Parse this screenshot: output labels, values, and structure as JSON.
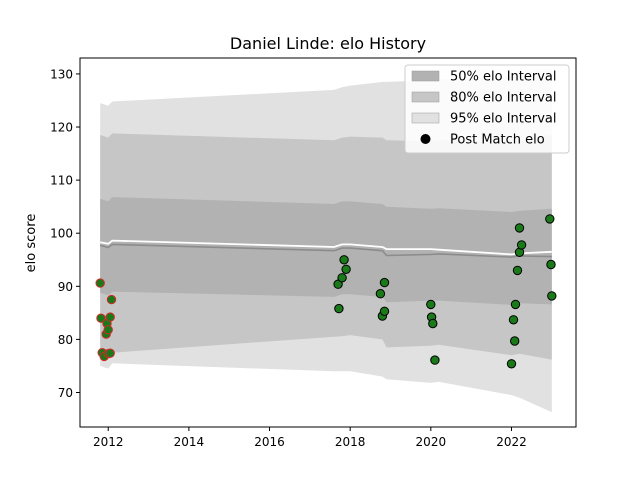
{
  "chart_data": {
    "type": "scatter",
    "title": "Daniel Linde: elo History",
    "xlabel": "",
    "ylabel": "elo score",
    "xlim": [
      2011.3,
      2023.6
    ],
    "ylim": [
      63.5,
      133
    ],
    "x_ticks": [
      2012,
      2014,
      2016,
      2018,
      2020,
      2022
    ],
    "y_ticks": [
      70,
      80,
      90,
      100,
      110,
      120,
      130
    ],
    "legend": {
      "placement": "top-right",
      "entries": [
        "50% elo Interval",
        "80% elo Interval",
        "95% elo Interval",
        "Post Match elo"
      ]
    },
    "colors": {
      "band_50": "#b2b2b2",
      "band_80": "#c6c6c6",
      "band_95": "#e1e1e1",
      "mean_line": "#ffffff",
      "median_line": "#8c8c8c",
      "early_points_edge": "#d62728",
      "recent_points_fill": "#1a7a1a",
      "points_edge": "#000000"
    },
    "mean_line": {
      "x": [
        2011.8,
        2012.0,
        2012.1,
        2017.6,
        2017.8,
        2018.0,
        2018.8,
        2018.9,
        2020.0,
        2020.2,
        2022.0,
        2022.2,
        2023.0
      ],
      "y": [
        98.3,
        98.0,
        98.6,
        97.4,
        97.9,
        97.9,
        97.4,
        97.0,
        97.0,
        96.9,
        96.0,
        96.2,
        96.5
      ]
    },
    "median_line": {
      "x": [
        2011.8,
        2012.0,
        2012.1,
        2017.6,
        2017.8,
        2018.0,
        2018.8,
        2018.9,
        2020.0,
        2020.2,
        2022.0,
        2022.2,
        2023.0
      ],
      "y": [
        97.7,
        97.3,
        97.9,
        96.7,
        97.2,
        97.2,
        96.7,
        95.8,
        96.0,
        96.1,
        95.5,
        95.7,
        95.6
      ]
    },
    "band_50": {
      "x": [
        2011.8,
        2012.0,
        2012.1,
        2017.6,
        2017.8,
        2018.0,
        2018.8,
        2018.9,
        2020.0,
        2020.2,
        2022.0,
        2022.2,
        2023.0
      ],
      "upper": [
        106.5,
        106.0,
        106.8,
        105.5,
        106.0,
        106.0,
        105.5,
        105.0,
        104.6,
        104.7,
        104.0,
        104.2,
        104.6
      ],
      "lower": [
        88.8,
        88.3,
        89.0,
        88.0,
        88.5,
        88.5,
        88.0,
        87.0,
        87.3,
        87.3,
        86.5,
        86.8,
        86.6
      ]
    },
    "band_80": {
      "x": [
        2011.8,
        2012.0,
        2012.1,
        2017.6,
        2017.8,
        2018.0,
        2018.8,
        2018.9,
        2020.0,
        2020.2,
        2022.0,
        2022.2,
        2023.0
      ],
      "upper": [
        118.5,
        118.0,
        118.8,
        117.5,
        118.0,
        118.2,
        118.0,
        117.5,
        117.3,
        117.5,
        117.2,
        117.6,
        118.5
      ],
      "lower": [
        77.0,
        76.5,
        77.5,
        80.5,
        80.6,
        80.8,
        80.0,
        78.5,
        78.8,
        79.0,
        77.0,
        77.3,
        76.2
      ]
    },
    "band_95": {
      "x": [
        2011.8,
        2012.0,
        2012.1,
        2017.6,
        2017.8,
        2018.0,
        2018.8,
        2018.9,
        2020.0,
        2020.2,
        2022.0,
        2022.2,
        2023.0
      ],
      "upper": [
        124.5,
        124.0,
        124.8,
        127.0,
        127.5,
        127.8,
        128.5,
        128.5,
        128.8,
        129.0,
        129.5,
        130.0,
        131.0
      ],
      "lower": [
        75.0,
        74.5,
        75.5,
        74.0,
        74.0,
        74.0,
        73.0,
        72.5,
        71.8,
        72.0,
        69.5,
        69.0,
        66.3
      ]
    },
    "series": [
      {
        "group": "early",
        "x": [
          2011.8,
          2011.82,
          2011.85,
          2011.9,
          2011.95,
          2011.97,
          2012.0,
          2012.0,
          2012.05,
          2012.05,
          2012.08
        ],
        "values": [
          90.6,
          84.0,
          77.5,
          76.8,
          81.0,
          83.0,
          81.8,
          77.3,
          77.4,
          84.2,
          87.5
        ]
      },
      {
        "group": "recent",
        "x": [
          2017.7,
          2017.72,
          2017.8,
          2017.85,
          2017.9,
          2018.75,
          2018.8,
          2018.85,
          2018.85,
          2020.0,
          2020.02,
          2020.05,
          2020.1,
          2022.0,
          2022.05,
          2022.08,
          2022.1,
          2022.15,
          2022.2,
          2022.2,
          2022.25,
          2022.95,
          2022.98,
          2023.0
        ],
        "values": [
          90.4,
          85.8,
          91.6,
          95.0,
          93.2,
          88.6,
          84.4,
          85.3,
          90.7,
          86.6,
          84.2,
          83.0,
          76.1,
          75.4,
          83.7,
          79.7,
          86.6,
          93.0,
          101.0,
          96.4,
          97.8,
          102.7,
          94.1,
          88.2
        ]
      }
    ]
  }
}
